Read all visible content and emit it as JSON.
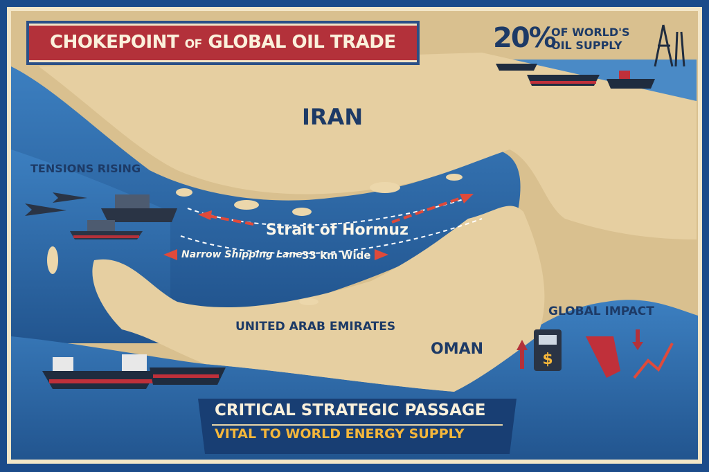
{
  "title": {
    "prefix": "CHOKEPOINT ",
    "connector": "OF",
    "suffix": " GLOBAL OIL TRADE"
  },
  "stat": {
    "value": "20%",
    "text_line1": "OF WORLD'S",
    "text_line2": "OIL SUPPLY"
  },
  "labels": {
    "iran": "IRAN",
    "strait": "Strait of Hormuz",
    "narrow_lane": "Narrow Shipping Lane",
    "width": "33 km Wide",
    "uae": "UNITED ARAB EMIRATES",
    "oman": "OMAN",
    "tensions": "TENSIONS RISING",
    "global_impact": "GLOBAL IMPACT"
  },
  "banner": {
    "line1": "CRITICAL STRATEGIC PASSAGE",
    "line2": "VITAL TO WORLD ENERGY SUPPLY"
  },
  "impact_icons": {
    "currency_symbol": "$"
  },
  "colors": {
    "border": "#1b4b8a",
    "water": "#2f6fb3",
    "land": "#e6cfa1",
    "title_red": "#b3313a",
    "accent_yellow": "#f5b73b",
    "arrow_red": "#e04a3a"
  }
}
